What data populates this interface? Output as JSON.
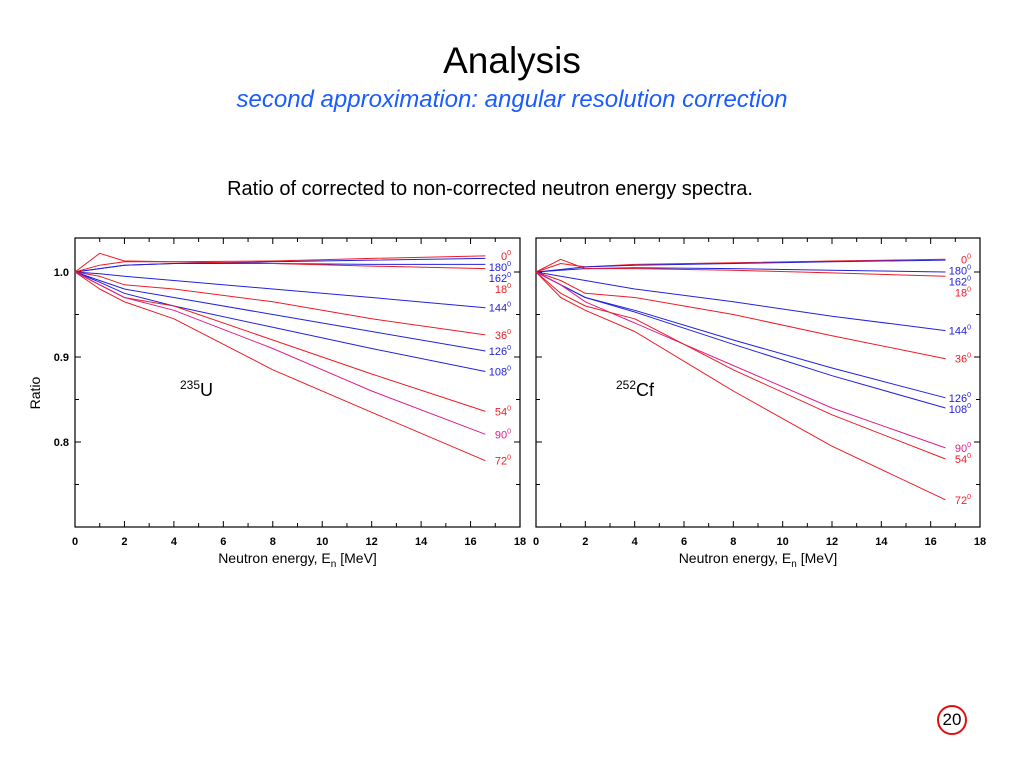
{
  "slide": {
    "title": "Analysis",
    "subtitle": "second approximation: angular resolution correction",
    "heading": "Ratio of corrected to non-corrected neutron energy spectra.",
    "page_number": "20"
  },
  "colors": {
    "red": "#ee1c25",
    "blue": "#2222dd",
    "magenta": "#e0208a"
  },
  "chart_data": [
    {
      "type": "line",
      "title": "235U",
      "title_sup": "235",
      "title_main": "U",
      "xlabel": "Neutron energy, E",
      "xlabel_sub": "n",
      "xlabel_unit": " [MeV]",
      "ylabel": "Ratio",
      "xlim": [
        0,
        18
      ],
      "ylim": [
        0.7,
        1.04
      ],
      "xticks": [
        "0",
        "2",
        "4",
        "6",
        "8",
        "10",
        "12",
        "14",
        "16",
        "18"
      ],
      "yticks": [
        "1.0",
        "0.9",
        "0.8"
      ],
      "x": [
        0,
        1,
        2,
        4,
        8,
        12,
        16.6
      ],
      "series": [
        {
          "name": "0",
          "color": "red",
          "values": [
            1,
            1.022,
            1.013,
            1.012,
            1.013,
            1.016,
            1.019
          ]
        },
        {
          "name": "180",
          "color": "blue",
          "values": [
            1,
            1.004,
            1.008,
            1.01,
            1.012,
            1.014,
            1.016
          ]
        },
        {
          "name": "162",
          "color": "blue",
          "values": [
            1,
            1.004,
            1.008,
            1.01,
            1.01,
            1.009,
            1.009
          ]
        },
        {
          "name": "18",
          "color": "red",
          "values": [
            1,
            1.008,
            1.012,
            1.012,
            1.01,
            1.007,
            1.004
          ]
        },
        {
          "name": "144",
          "color": "blue",
          "values": [
            1,
            0.998,
            0.995,
            0.99,
            0.98,
            0.97,
            0.958
          ]
        },
        {
          "name": "36",
          "color": "red",
          "values": [
            1,
            0.995,
            0.985,
            0.98,
            0.965,
            0.945,
            0.926
          ]
        },
        {
          "name": "126",
          "color": "blue",
          "values": [
            1,
            0.99,
            0.98,
            0.97,
            0.95,
            0.93,
            0.907
          ]
        },
        {
          "name": "108",
          "color": "blue",
          "values": [
            1,
            0.988,
            0.975,
            0.96,
            0.935,
            0.91,
            0.883
          ]
        },
        {
          "name": "54",
          "color": "red",
          "values": [
            1,
            0.985,
            0.97,
            0.96,
            0.92,
            0.88,
            0.836
          ]
        },
        {
          "name": "90",
          "color": "magenta",
          "values": [
            1,
            0.985,
            0.97,
            0.955,
            0.91,
            0.86,
            0.809
          ]
        },
        {
          "name": "72",
          "color": "red",
          "values": [
            1,
            0.98,
            0.965,
            0.945,
            0.885,
            0.835,
            0.778
          ]
        }
      ]
    },
    {
      "type": "line",
      "title": "252Cf",
      "title_sup": "252",
      "title_main": "Cf",
      "xlabel": "Neutron energy, E",
      "xlabel_sub": "n",
      "xlabel_unit": " [MeV]",
      "xlim": [
        0,
        18
      ],
      "ylim": [
        0.7,
        1.04
      ],
      "xticks": [
        "0",
        "2",
        "4",
        "6",
        "8",
        "10",
        "12",
        "14",
        "16",
        "18"
      ],
      "x": [
        0,
        1,
        2,
        4,
        8,
        12,
        16.6
      ],
      "series": [
        {
          "name": "0",
          "color": "red",
          "values": [
            1,
            1.01,
            1.006,
            1.009,
            1.011,
            1.013,
            1.015
          ]
        },
        {
          "name": "180",
          "color": "blue",
          "values": [
            1,
            1.003,
            1.006,
            1.008,
            1.01,
            1.012,
            1.014
          ]
        },
        {
          "name": "162",
          "color": "blue",
          "values": [
            1,
            1.002,
            1.004,
            1.005,
            1.004,
            1.002,
            1.0
          ]
        },
        {
          "name": "18",
          "color": "red",
          "values": [
            1,
            1.015,
            1.004,
            1.004,
            1.002,
            0.999,
            0.995
          ]
        },
        {
          "name": "144",
          "color": "blue",
          "values": [
            1,
            0.995,
            0.99,
            0.98,
            0.965,
            0.948,
            0.931
          ]
        },
        {
          "name": "36",
          "color": "red",
          "values": [
            1,
            0.99,
            0.975,
            0.97,
            0.95,
            0.925,
            0.898
          ]
        },
        {
          "name": "126",
          "color": "blue",
          "values": [
            1,
            0.985,
            0.97,
            0.955,
            0.92,
            0.887,
            0.852
          ]
        },
        {
          "name": "108",
          "color": "blue",
          "values": [
            1,
            0.985,
            0.97,
            0.953,
            0.915,
            0.878,
            0.84
          ]
        },
        {
          "name": "90",
          "color": "magenta",
          "values": [
            1,
            0.985,
            0.965,
            0.94,
            0.89,
            0.84,
            0.793
          ]
        },
        {
          "name": "54",
          "color": "red",
          "values": [
            1,
            0.975,
            0.96,
            0.945,
            0.885,
            0.832,
            0.78
          ]
        },
        {
          "name": "72",
          "color": "red",
          "values": [
            1,
            0.97,
            0.955,
            0.93,
            0.86,
            0.795,
            0.732
          ]
        }
      ]
    }
  ]
}
